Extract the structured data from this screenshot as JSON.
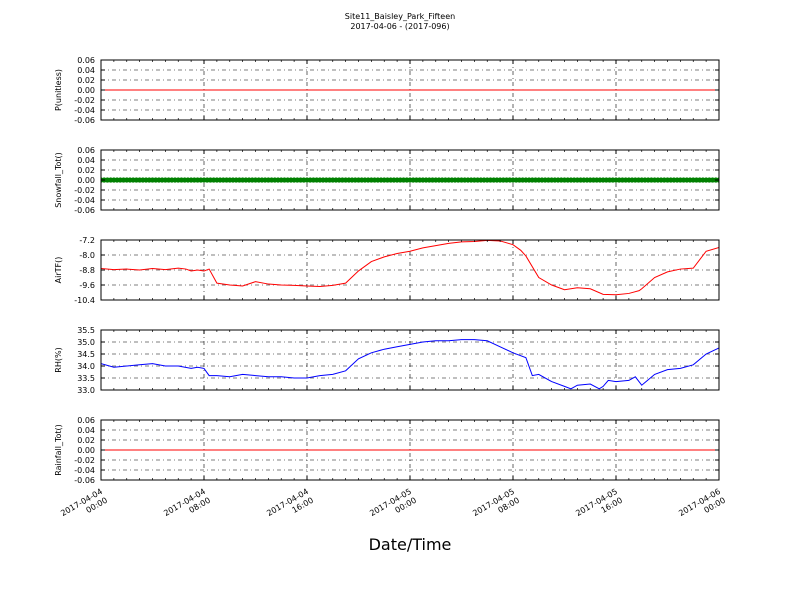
{
  "title_line1": "Site11_Baisley_Park_Fifteen",
  "title_line2": "2017-04-06 - (2017-096)",
  "xlabel": "Date/Time",
  "chart_data": {
    "type": "line",
    "xlabel": "Date/Time",
    "x_ticks": [
      [
        "2017-04-04",
        "00:00"
      ],
      [
        "2017-04-04",
        "08:00"
      ],
      [
        "2017-04-04",
        "16:00"
      ],
      [
        "2017-04-05",
        "00:00"
      ],
      [
        "2017-04-05",
        "08:00"
      ],
      [
        "2017-04-05",
        "16:00"
      ],
      [
        "2017-04-06",
        "00:00"
      ]
    ],
    "x_range_hours": [
      0,
      48
    ],
    "grid": true,
    "panels": [
      {
        "ylabel": "P(unitless)",
        "ylim": [
          -0.06,
          0.06
        ],
        "yticks": [
          "-0.06",
          "-0.04",
          "-0.02",
          "0.00",
          "0.02",
          "0.04",
          "0.06"
        ],
        "ytick_values": [
          -0.06,
          -0.04,
          -0.02,
          0.0,
          0.02,
          0.04,
          0.06
        ],
        "color": "#ff0000",
        "style": "line",
        "x": [
          0,
          48
        ],
        "y": [
          0,
          0
        ]
      },
      {
        "ylabel": "Snowfall_Tot()",
        "ylim": [
          -0.06,
          0.06
        ],
        "yticks": [
          "-0.06",
          "-0.04",
          "-0.02",
          "0.00",
          "0.02",
          "0.04",
          "0.06"
        ],
        "ytick_values": [
          -0.06,
          -0.04,
          -0.02,
          0.0,
          0.02,
          0.04,
          0.06
        ],
        "color": "#008000",
        "style": "markers",
        "marker_interval_hours": 0.25,
        "constant_y": 0
      },
      {
        "ylabel": "AirTF()",
        "ylim": [
          -10.4,
          -7.2
        ],
        "yticks": [
          "-7.2",
          "-8.0",
          "-8.8",
          "-9.6",
          "-10.4"
        ],
        "ytick_values": [
          -7.2,
          -8.0,
          -8.8,
          -9.6,
          -10.4
        ],
        "color": "#ff0000",
        "style": "line",
        "x": [
          0,
          1,
          2,
          3,
          4,
          5,
          6,
          6.6,
          7,
          7.5,
          8,
          8.4,
          9,
          10,
          11,
          12,
          13,
          14,
          15,
          16,
          17,
          18,
          19,
          20,
          21,
          22,
          23,
          24,
          25,
          26,
          27,
          28,
          29,
          30,
          31,
          32,
          32.6,
          33,
          34,
          35,
          36,
          37,
          38,
          39,
          40,
          41,
          41.8,
          42,
          43,
          44,
          45,
          46,
          47,
          48
        ],
        "y": [
          -8.72,
          -8.78,
          -8.75,
          -8.8,
          -8.72,
          -8.78,
          -8.7,
          -8.75,
          -8.85,
          -8.8,
          -8.85,
          -8.75,
          -9.5,
          -9.6,
          -9.65,
          -9.42,
          -9.55,
          -9.6,
          -9.62,
          -9.65,
          -9.68,
          -9.62,
          -9.5,
          -8.85,
          -8.35,
          -8.1,
          -7.92,
          -7.8,
          -7.62,
          -7.5,
          -7.38,
          -7.3,
          -7.28,
          -7.22,
          -7.25,
          -7.45,
          -7.75,
          -8.05,
          -9.2,
          -9.6,
          -9.85,
          -9.75,
          -9.8,
          -10.1,
          -10.12,
          -10.05,
          -9.9,
          -9.8,
          -9.2,
          -8.9,
          -8.75,
          -8.7,
          -7.8,
          -7.6
        ]
      },
      {
        "ylabel": "RH(%)",
        "ylim": [
          33.0,
          35.5
        ],
        "yticks": [
          "35.5",
          "35.0",
          "34.5",
          "34.0",
          "33.5",
          "33.0"
        ],
        "ytick_values": [
          35.5,
          35.0,
          34.5,
          34.0,
          33.5,
          33.0
        ],
        "color": "#0000ff",
        "style": "line",
        "x": [
          0,
          1,
          2,
          3,
          4,
          5,
          6,
          7,
          7.5,
          8,
          8.4,
          9,
          10,
          11,
          12,
          13,
          14,
          15,
          16,
          17,
          18,
          19,
          20,
          21,
          22,
          23,
          24,
          25,
          26,
          27,
          28,
          29,
          30,
          31,
          32,
          33,
          33.5,
          34,
          35,
          36,
          36.5,
          37,
          38,
          38.7,
          39,
          39.4,
          40,
          41,
          41.5,
          42,
          43,
          44,
          45,
          46,
          47,
          48
        ],
        "y": [
          34.1,
          33.95,
          34.0,
          34.05,
          34.1,
          34.0,
          34.0,
          33.9,
          33.95,
          33.9,
          33.6,
          33.6,
          33.55,
          33.65,
          33.6,
          33.55,
          33.55,
          33.5,
          33.5,
          33.6,
          33.65,
          33.8,
          34.3,
          34.55,
          34.7,
          34.8,
          34.9,
          35.0,
          35.05,
          35.05,
          35.1,
          35.1,
          35.05,
          34.8,
          34.55,
          34.35,
          33.6,
          33.65,
          33.35,
          33.15,
          33.05,
          33.2,
          33.25,
          33.05,
          33.15,
          33.4,
          33.35,
          33.4,
          33.55,
          33.2,
          33.65,
          33.85,
          33.9,
          34.05,
          34.5,
          34.75
        ]
      },
      {
        "ylabel": "Rainfall_Tot()",
        "ylim": [
          -0.06,
          0.06
        ],
        "yticks": [
          "-0.06",
          "-0.04",
          "-0.02",
          "0.00",
          "0.02",
          "0.04",
          "0.06"
        ],
        "ytick_values": [
          -0.06,
          -0.04,
          -0.02,
          0.0,
          0.02,
          0.04,
          0.06
        ],
        "color": "#ff0000",
        "style": "line",
        "x": [
          0,
          48
        ],
        "y": [
          0,
          0
        ]
      }
    ]
  }
}
